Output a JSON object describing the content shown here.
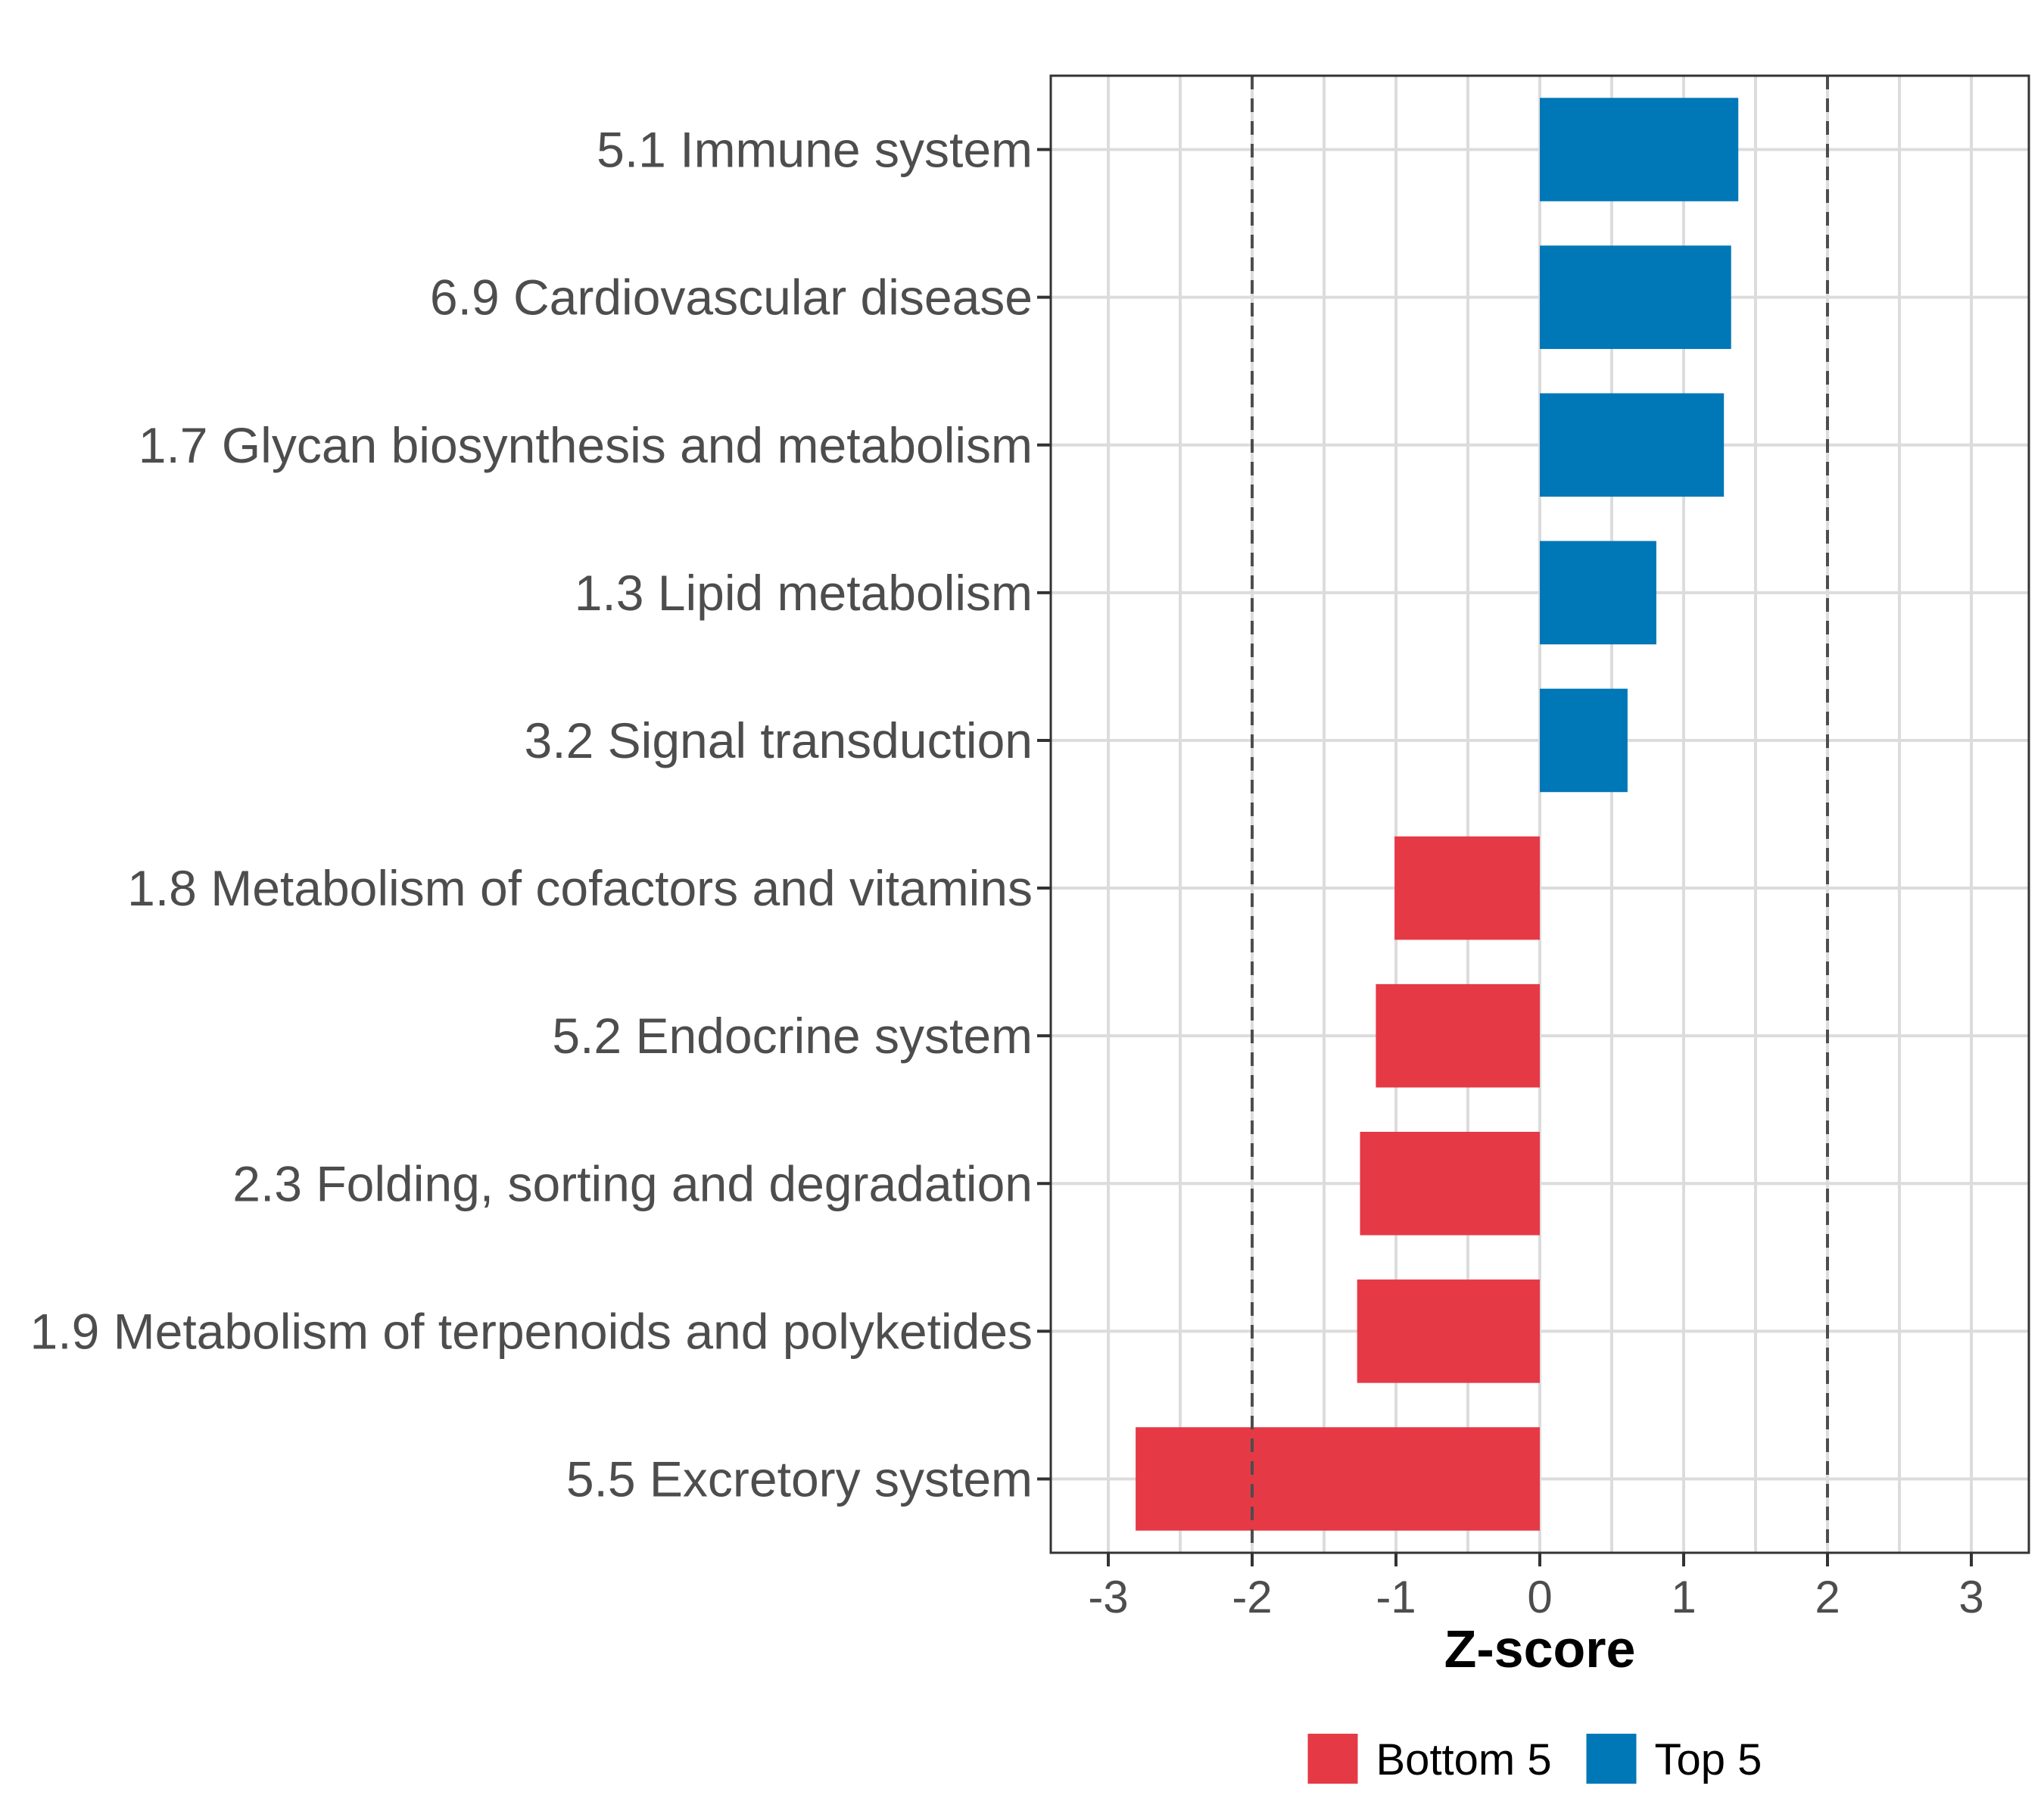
{
  "chart_data": {
    "type": "bar",
    "orientation": "horizontal",
    "title": "",
    "xlabel": "Z-score",
    "ylabel": "",
    "xlim": [
      -3.4,
      3.4
    ],
    "xticks": [
      -3,
      -2,
      -1,
      0,
      1,
      2,
      3
    ],
    "grid": true,
    "reference_lines": [
      -2,
      2
    ],
    "colors": {
      "Bottom 5": "#E63946",
      "Top 5": "#0077B6"
    },
    "categories": [
      "5.1 Immune system",
      "6.9 Cardiovascular disease",
      "1.7 Glycan biosynthesis and metabolism",
      "1.3 Lipid metabolism",
      "3.2 Signal transduction",
      "1.8 Metabolism of cofactors and vitamins",
      "5.2 Endocrine system",
      "2.3 Folding, sorting and degradation",
      "1.9 Metabolism of terpenoids and polyketides",
      "5.5 Excretory system"
    ],
    "values": [
      1.38,
      1.33,
      1.28,
      0.81,
      0.61,
      -1.01,
      -1.14,
      -1.25,
      -1.27,
      -2.81
    ],
    "groups": [
      "Top 5",
      "Top 5",
      "Top 5",
      "Top 5",
      "Top 5",
      "Bottom 5",
      "Bottom 5",
      "Bottom 5",
      "Bottom 5",
      "Bottom 5"
    ],
    "legend": {
      "position": "bottom",
      "entries": [
        "Bottom 5",
        "Top 5"
      ]
    }
  }
}
